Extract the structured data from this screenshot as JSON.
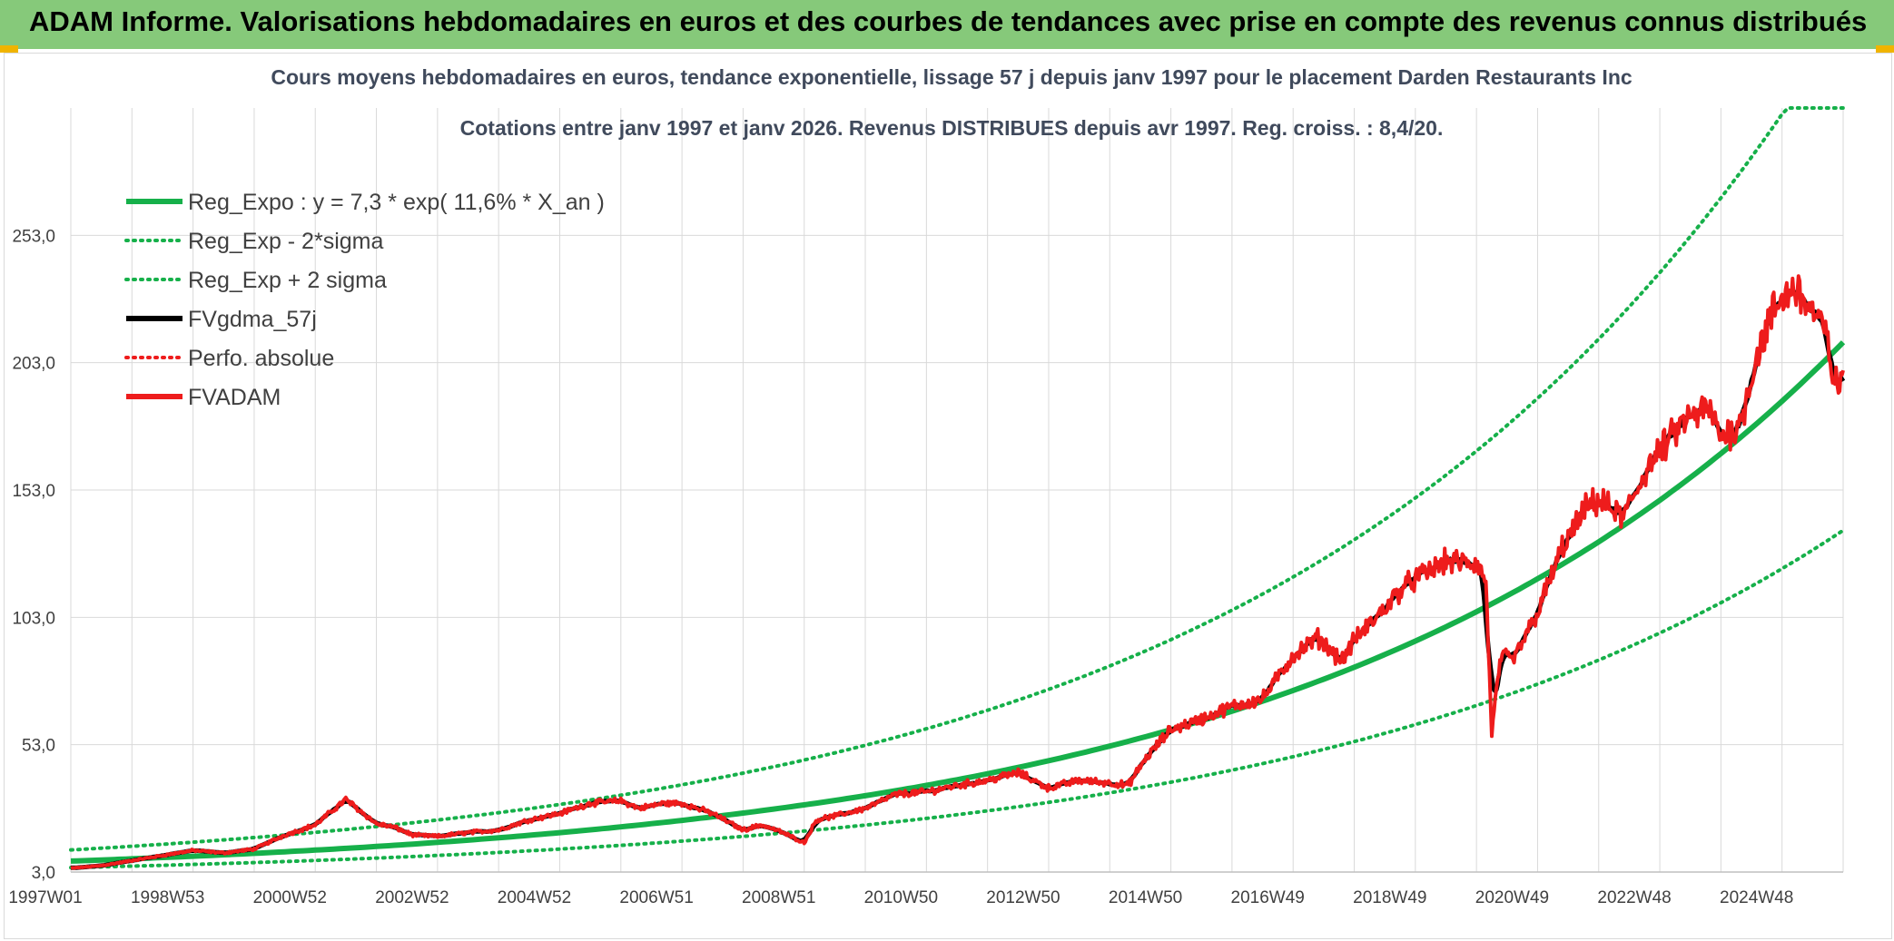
{
  "header": {
    "title": "ADAM Informe. Valorisations hebdomadaires en euros et des courbes de tendances avec prise en compte des revenus connus distribués",
    "background_color": "#86c97a"
  },
  "chart_data": {
    "type": "line",
    "title": "Cours moyens hebdomadaires en euros, tendance exponentielle, lissage 57 j depuis janv 1997 pour le placement Darden Restaurants Inc",
    "subtitle": "Cotations entre janv 1997 et janv 2026. Revenus DISTRIBUES depuis avr 1997. Reg. croiss. : 8,4/20.",
    "x_range": [
      1997.0,
      2026.0
    ],
    "ylim": [
      3.0,
      303.0
    ],
    "y_ticks": [
      "3,0",
      "53,0",
      "103,0",
      "153,0",
      "203,0",
      "253,0"
    ],
    "y_tick_values": [
      3,
      53,
      103,
      153,
      203,
      253
    ],
    "x_tick_labels": [
      "1997W01",
      "1998W53",
      "2000W52",
      "2002W52",
      "2004W52",
      "2006W51",
      "2008W51",
      "2010W50",
      "2012W50",
      "2014W50",
      "2016W49",
      "2018W49",
      "2020W49",
      "2022W48",
      "2024W48"
    ],
    "x_tick_years": [
      1997,
      1999,
      2001,
      2003,
      2005,
      2007,
      2009,
      2011,
      2013,
      2015,
      2017,
      2019,
      2021,
      2023,
      2025
    ],
    "grid": true,
    "legend_position": "top-left",
    "regression": {
      "a": 7.3,
      "growth": 0.116,
      "upper_factor": 1.6,
      "lower_factor": 0.65,
      "upper_cap": 303
    },
    "series": [
      {
        "name": "Reg_Expo : y = 7,3 * exp( 11,6% *  X_an )",
        "color": "#16b04a",
        "style": "solid",
        "kind": "trend"
      },
      {
        "name": "Reg_Exp - 2*sigma",
        "color": "#16b04a",
        "style": "dotted",
        "kind": "lower"
      },
      {
        "name": "Reg_Exp + 2 sigma",
        "color": "#16b04a",
        "style": "dotted",
        "kind": "upper"
      },
      {
        "name": "FVgdma_57j",
        "color": "#000000",
        "style": "solid",
        "kind": "smooth"
      },
      {
        "name": "Perfo. absolue",
        "color": "#ee1c1c",
        "style": "dotted",
        "kind": "none"
      },
      {
        "name": "FVADAM",
        "color": "#ee1c1c",
        "style": "solid",
        "kind": "price"
      }
    ],
    "price_points": {
      "x": [
        1997.0,
        1997.5,
        1998.0,
        1998.5,
        1999.0,
        1999.5,
        2000.0,
        2000.5,
        2001.0,
        2001.5,
        2002.0,
        2002.3,
        2002.6,
        2003.0,
        2003.5,
        2004.0,
        2004.5,
        2005.0,
        2005.5,
        2006.0,
        2006.3,
        2006.7,
        2007.0,
        2007.5,
        2008.0,
        2008.3,
        2008.6,
        2009.0,
        2009.2,
        2009.5,
        2010.0,
        2010.5,
        2011.0,
        2011.5,
        2012.0,
        2012.5,
        2013.0,
        2013.5,
        2014.0,
        2014.3,
        2014.6,
        2015.0,
        2015.5,
        2016.0,
        2016.5,
        2017.0,
        2017.4,
        2017.8,
        2018.0,
        2018.4,
        2018.8,
        2019.0,
        2019.5,
        2020.0,
        2020.15,
        2020.25,
        2020.4,
        2020.6,
        2021.0,
        2021.4,
        2021.8,
        2022.0,
        2022.4,
        2022.8,
        2023.0,
        2023.4,
        2023.8,
        2024.0,
        2024.3,
        2024.6,
        2024.9,
        2025.2,
        2025.5,
        2025.7,
        2025.9,
        2026.0
      ],
      "y": [
        4.5,
        5.5,
        7.5,
        9.5,
        11.5,
        10.5,
        12,
        17.5,
        21.5,
        31.5,
        22,
        20.5,
        17.5,
        17,
        18.5,
        19.5,
        23.5,
        26,
        30,
        31,
        28,
        30,
        30,
        26,
        19.5,
        21.5,
        19,
        14.5,
        23.5,
        25,
        28,
        33.5,
        34.5,
        37,
        39,
        42,
        36,
        39,
        38,
        37,
        48,
        59,
        63,
        68,
        71,
        88,
        95,
        86,
        94,
        104,
        115,
        118,
        125,
        124,
        118,
        58,
        88,
        86,
        105,
        130,
        146,
        149,
        142,
        162,
        168,
        180,
        185,
        174,
        178,
        207,
        225,
        233,
        223,
        215,
        192,
        200
      ]
    }
  }
}
